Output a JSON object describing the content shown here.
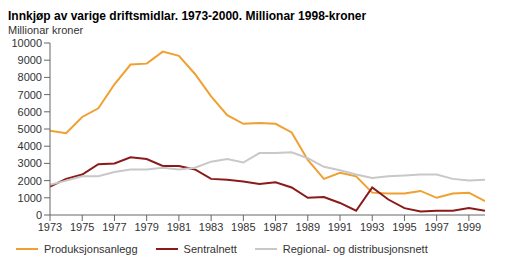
{
  "chart_data": {
    "type": "line",
    "title": "Innkjøp av varige driftsmidlar. 1973-2000. Millionar 1998-kroner",
    "y_label": "Millionar kroner",
    "x": [
      1973,
      1974,
      1975,
      1976,
      1977,
      1978,
      1979,
      1980,
      1981,
      1982,
      1983,
      1984,
      1985,
      1986,
      1987,
      1988,
      1989,
      1990,
      1991,
      1992,
      1993,
      1994,
      1995,
      1996,
      1997,
      1998,
      1999,
      2000
    ],
    "series": [
      {
        "name": "Produksjonsanlegg",
        "color": "#f0a030",
        "values": [
          4900,
          4750,
          5700,
          6200,
          7600,
          8750,
          8800,
          9500,
          9250,
          8200,
          6900,
          5800,
          5300,
          5350,
          5300,
          4800,
          3200,
          2100,
          2450,
          2250,
          1300,
          1250,
          1250,
          1400,
          1000,
          1250,
          1300,
          800
        ]
      },
      {
        "name": "Sentralnett",
        "color": "#8b1a1a",
        "values": [
          1650,
          2100,
          2350,
          2950,
          3000,
          3350,
          3250,
          2850,
          2850,
          2650,
          2100,
          2050,
          1950,
          1800,
          1900,
          1600,
          1000,
          1050,
          700,
          250,
          1600,
          900,
          400,
          200,
          250,
          250,
          400,
          250
        ]
      },
      {
        "name": "Regional- og distribusjonsnett",
        "color": "#c8c8c8",
        "values": [
          1750,
          2000,
          2250,
          2250,
          2500,
          2650,
          2650,
          2750,
          2650,
          2750,
          3100,
          3250,
          3050,
          3600,
          3600,
          3650,
          3300,
          2800,
          2600,
          2350,
          2150,
          2250,
          2300,
          2350,
          2350,
          2100,
          2000,
          2050
        ]
      }
    ],
    "xlim": [
      1973,
      2000
    ],
    "xticks": [
      1973,
      1975,
      1977,
      1979,
      1981,
      1983,
      1985,
      1987,
      1989,
      1991,
      1993,
      1995,
      1997,
      1999
    ],
    "ylim": [
      0,
      10000
    ],
    "yticks": [
      0,
      1000,
      2000,
      3000,
      4000,
      5000,
      6000,
      7000,
      8000,
      9000,
      10000
    ],
    "grid": false,
    "legend": "bottom"
  }
}
